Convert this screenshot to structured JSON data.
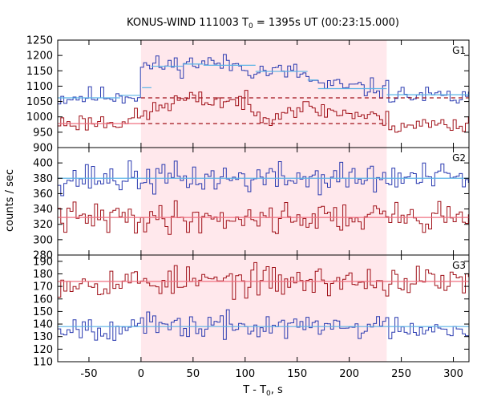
{
  "chart_data": {
    "type": "line",
    "title": "KONUS-WIND 111003 T",
    "title_sub": "0",
    "title_rest": " = 1395s UT (00:23:15.000)",
    "xlabel": "T - T",
    "xlabel_sub": "0",
    "xlabel_rest": ", s",
    "ylabel": "counts / sec",
    "xlim": [
      -80,
      315
    ],
    "x_ticks": [
      -50,
      0,
      50,
      100,
      150,
      200,
      250,
      300
    ],
    "shaded_interval": {
      "x": [
        0,
        236
      ],
      "color": "#ffe8ec"
    },
    "series_colors": {
      "blue": "#2a3ab0",
      "red": "#a01018",
      "fit_blue": "#5ab4e6",
      "fit_red": "#f07080",
      "dashed_red": "#a01018"
    },
    "panels": [
      {
        "name": "G1",
        "ylim": [
          900,
          1250
        ],
        "y_ticks": [
          900,
          950,
          1000,
          1050,
          1100,
          1150,
          1200,
          1250
        ],
        "series": [
          {
            "color_key": "blue",
            "knots": [
              [
                -80,
                1062
              ],
              [
                -20,
                1070
              ],
              [
                0,
                1070
              ],
              [
                1,
                1165
              ],
              [
                40,
                1170
              ],
              [
                60,
                1178
              ],
              [
                100,
                1165
              ],
              [
                110,
                1150
              ],
              [
                150,
                1145
              ],
              [
                160,
                1130
              ],
              [
                170,
                1105
              ],
              [
                200,
                1095
              ],
              [
                236,
                1090
              ],
              [
                240,
                1072
              ],
              [
                315,
                1060
              ]
            ],
            "noise": 16,
            "seed": 11
          },
          {
            "color_key": "red",
            "knots": [
              [
                -80,
                980
              ],
              [
                -20,
                985
              ],
              [
                0,
                1000
              ],
              [
                20,
                1035
              ],
              [
                40,
                1055
              ],
              [
                100,
                1050
              ],
              [
                110,
                1000
              ],
              [
                150,
                1030
              ],
              [
                200,
                1012
              ],
              [
                236,
                990
              ],
              [
                240,
                975
              ],
              [
                315,
                975
              ]
            ],
            "noise": 15,
            "seed": 23
          }
        ],
        "fits": [
          {
            "color_key": "fit_blue",
            "segments": [
              [
                -80,
                -20,
                1062
              ],
              [
                -20,
                0,
                1070
              ],
              [
                1,
                10,
                1095
              ],
              [
                10,
                40,
                1165
              ],
              [
                40,
                60,
                1172
              ],
              [
                60,
                110,
                1168
              ],
              [
                110,
                160,
                1148
              ],
              [
                160,
                170,
                1120
              ],
              [
                170,
                236,
                1092
              ],
              [
                236,
                315,
                1072
              ]
            ]
          },
          {
            "color_key": "fit_red",
            "segments": [
              [
                -80,
                0,
                978
              ]
            ]
          }
        ],
        "dashed": [
          {
            "color_key": "dashed_red",
            "y": 1062,
            "x": [
              0,
              315
            ]
          },
          {
            "color_key": "dashed_red",
            "y": 978,
            "x": [
              0,
              236
            ]
          }
        ]
      },
      {
        "name": "G2",
        "ylim": [
          280,
          420
        ],
        "y_ticks": [
          280,
          300,
          320,
          340,
          360,
          380,
          400
        ],
        "series": [
          {
            "color_key": "blue",
            "knots": [
              [
                -80,
                380
              ],
              [
                315,
                380
              ]
            ],
            "noise": 10,
            "seed": 37
          },
          {
            "color_key": "red",
            "knots": [
              [
                -80,
                328
              ],
              [
                315,
                330
              ]
            ],
            "noise": 10,
            "seed": 41
          }
        ],
        "fits": [
          {
            "color_key": "fit_blue",
            "segments": [
              [
                -80,
                315,
                380
              ]
            ]
          },
          {
            "color_key": "fit_red",
            "segments": [
              [
                -80,
                315,
                329
              ]
            ]
          }
        ],
        "dashed": []
      },
      {
        "name": "G3",
        "ylim": [
          110,
          195
        ],
        "y_ticks": [
          110,
          120,
          130,
          140,
          150,
          160,
          170,
          180,
          190
        ],
        "series": [
          {
            "color_key": "red",
            "knots": [
              [
                -80,
                174
              ],
              [
                315,
                174
              ]
            ],
            "noise": 6,
            "seed": 53
          },
          {
            "color_key": "blue",
            "knots": [
              [
                -80,
                138
              ],
              [
                315,
                138
              ]
            ],
            "noise": 5,
            "seed": 67
          }
        ],
        "fits": [
          {
            "color_key": "fit_red",
            "segments": [
              [
                -80,
                315,
                174
              ]
            ]
          },
          {
            "color_key": "fit_blue",
            "segments": [
              [
                -80,
                315,
                138
              ]
            ]
          }
        ],
        "dashed": []
      }
    ],
    "bin_width_s": 2.944
  }
}
